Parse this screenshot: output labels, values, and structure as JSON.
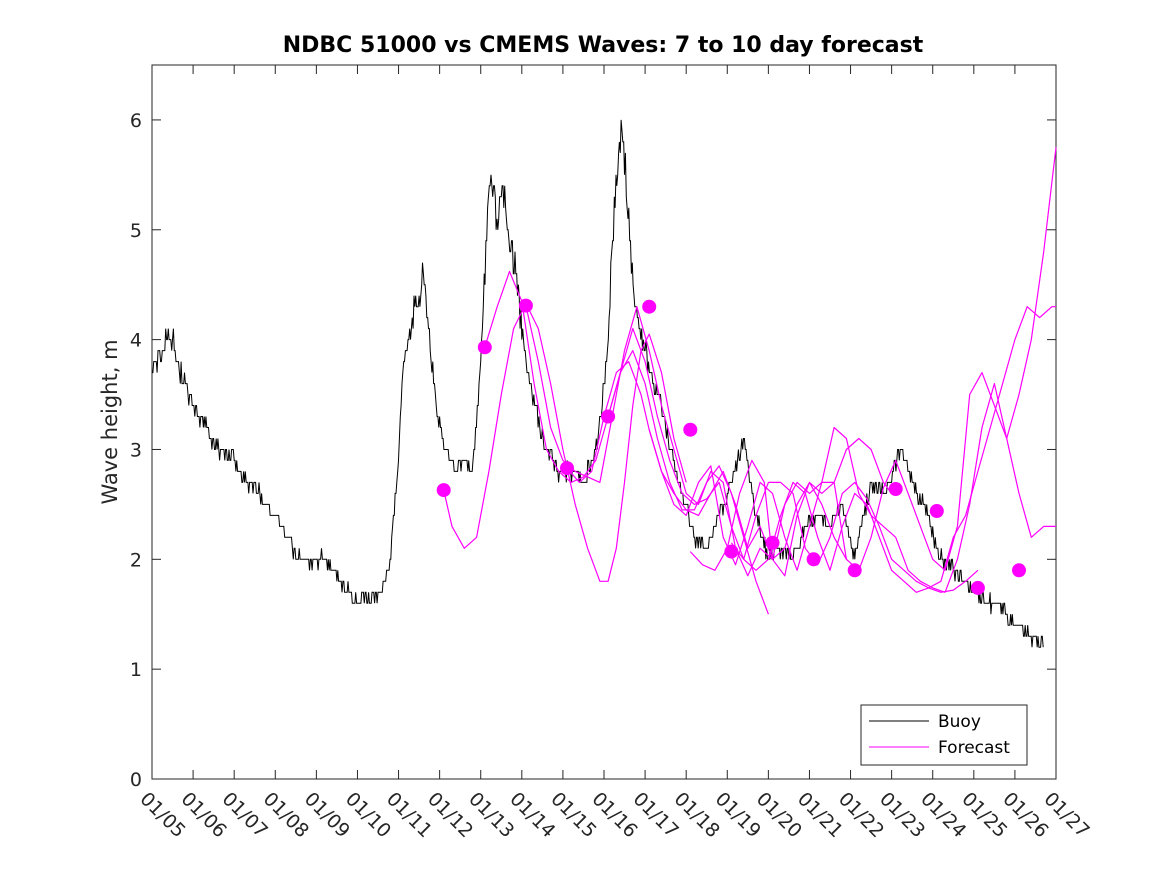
{
  "chart_data": {
    "type": "line",
    "title": "NDBC 51000 vs CMEMS Waves: 7 to 10 day forecast",
    "xlabel": "",
    "ylabel": "Wave height, m",
    "xlim": [
      0,
      22
    ],
    "ylim": [
      0,
      6.5
    ],
    "x_tick_labels": [
      "01/05",
      "01/06",
      "01/07",
      "01/08",
      "01/09",
      "01/10",
      "01/11",
      "01/12",
      "01/13",
      "01/14",
      "01/15",
      "01/16",
      "01/17",
      "01/18",
      "01/19",
      "01/20",
      "01/21",
      "01/22",
      "01/23",
      "01/24",
      "01/25",
      "01/26",
      "01/27"
    ],
    "y_ticks": [
      0,
      1,
      2,
      3,
      4,
      5,
      6
    ],
    "legend": {
      "position": "bottom-right",
      "entries": [
        "Buoy",
        "Forecast"
      ]
    },
    "colors": {
      "buoy": "#000000",
      "forecast": "#ff00ff"
    },
    "x_units": "days since 01/05",
    "buoy": {
      "name": "Buoy",
      "x": [
        0,
        0.25,
        0.4,
        0.5,
        0.7,
        1,
        1.3,
        1.6,
        2,
        2.3,
        2.6,
        3,
        3.3,
        3.6,
        4,
        4.3,
        4.6,
        4.8,
        5,
        5.3,
        5.6,
        5.8,
        6,
        6.1,
        6.25,
        6.4,
        6.5,
        6.6,
        6.75,
        6.9,
        7.1,
        7.4,
        7.6,
        7.8,
        8,
        8.1,
        8.2,
        8.3,
        8.4,
        8.55,
        8.7,
        8.85,
        9.05,
        9.3,
        9.6,
        9.9,
        10.1,
        10.35,
        10.5,
        10.7,
        10.9,
        11.1,
        11.25,
        11.4,
        11.5,
        11.65,
        11.8,
        12,
        12.15,
        12.25,
        12.4,
        12.5,
        12.7,
        12.9,
        13.2,
        13.5,
        13.8,
        14.1,
        14.4,
        14.7,
        15,
        15.3,
        15.6,
        15.9,
        16.2,
        16.5,
        16.8,
        17.1,
        17.5,
        17.8,
        18.05,
        18.2,
        18.4,
        18.6,
        18.8,
        19,
        19.2,
        19.5,
        19.8,
        20,
        20.3,
        20.6,
        20.8,
        21,
        21.3,
        21.5,
        21.7
      ],
      "y": [
        3.7,
        3.9,
        4.1,
        4.0,
        3.7,
        3.4,
        3.2,
        3.0,
        2.9,
        2.7,
        2.6,
        2.4,
        2.2,
        2.0,
        2.0,
        2.0,
        1.8,
        1.7,
        1.6,
        1.65,
        1.7,
        2.0,
        2.9,
        3.7,
        4.0,
        4.3,
        4.4,
        4.6,
        4.0,
        3.5,
        3.0,
        2.8,
        2.9,
        2.8,
        3.8,
        4.6,
        5.3,
        5.4,
        5.1,
        5.3,
        5.0,
        4.6,
        3.9,
        3.4,
        3.0,
        2.8,
        2.8,
        2.8,
        2.7,
        2.9,
        3.2,
        4.0,
        5.2,
        5.9,
        5.6,
        4.8,
        4.2,
        3.9,
        3.7,
        3.6,
        3.4,
        3.2,
        2.9,
        2.6,
        2.2,
        2.1,
        2.4,
        2.7,
        3.1,
        2.4,
        2.0,
        2.1,
        2.0,
        2.3,
        2.4,
        2.3,
        2.5,
        2.0,
        2.7,
        2.6,
        2.8,
        3.0,
        2.8,
        2.6,
        2.5,
        2.2,
        2.0,
        1.9,
        1.8,
        1.7,
        1.6,
        1.6,
        1.5,
        1.4,
        1.3,
        1.3,
        1.25
      ]
    },
    "forecast": {
      "name": "Forecast",
      "series": [
        {
          "x": [
            7.1,
            7.3,
            7.6,
            7.9,
            8.2,
            8.5,
            8.8,
            9.1,
            9.4,
            9.7,
            10.0,
            10.3,
            10.6,
            10.9,
            11.1,
            11.3,
            11.5,
            11.7,
            11.9,
            12.1,
            12.4,
            12.7,
            13.0
          ],
          "y": [
            2.63,
            2.3,
            2.1,
            2.2,
            2.8,
            3.5,
            4.1,
            4.33,
            4.1,
            3.6,
            3.0,
            2.5,
            2.1,
            1.8,
            1.8,
            2.1,
            2.7,
            3.4,
            3.9,
            4.05,
            3.7,
            3.1,
            2.7
          ]
        },
        {
          "x": [
            8.1,
            8.4,
            8.7,
            9.0,
            9.3,
            9.6,
            9.9,
            10.2,
            10.5,
            10.8,
            11.1,
            11.4,
            11.7,
            12.0,
            12.3,
            12.6,
            12.9,
            13.2,
            13.5,
            13.8,
            14.1,
            14.4,
            14.7,
            15.0
          ],
          "y": [
            3.93,
            4.3,
            4.62,
            4.35,
            3.6,
            3.0,
            2.8,
            2.7,
            2.75,
            2.9,
            3.3,
            3.7,
            3.9,
            3.6,
            3.1,
            2.7,
            2.45,
            2.45,
            2.7,
            2.85,
            2.6,
            2.2,
            1.8,
            1.5
          ]
        },
        {
          "x": [
            9.1,
            9.4,
            9.7,
            10.0,
            10.3,
            10.6,
            10.9,
            11.2,
            11.5,
            11.8,
            12.1,
            12.4,
            12.7,
            13.0,
            13.3,
            13.6,
            13.9,
            14.2,
            14.5,
            14.8,
            15.1,
            15.4,
            15.7,
            16.0,
            16.3,
            16.6,
            16.9
          ],
          "y": [
            4.31,
            3.8,
            3.2,
            2.9,
            2.8,
            2.75,
            2.7,
            3.3,
            3.9,
            4.3,
            3.9,
            3.4,
            3.0,
            2.6,
            2.5,
            2.8,
            2.7,
            2.1,
            1.85,
            2.1,
            2.0,
            2.5,
            2.7,
            2.6,
            2.7,
            2.7,
            2.0
          ]
        },
        {
          "x": [
            10.1,
            10.4,
            10.7,
            11.0,
            11.3,
            11.6,
            11.9,
            12.1,
            12.4,
            12.7,
            13.0,
            13.3,
            13.6,
            13.9,
            14.2,
            14.5,
            14.8,
            15.1,
            15.4,
            15.7,
            16.0,
            16.3,
            16.6,
            16.9,
            17.2,
            17.5,
            17.8,
            18.0
          ],
          "y": [
            2.83,
            2.7,
            2.8,
            3.3,
            3.7,
            3.8,
            3.5,
            3.18,
            2.8,
            2.6,
            2.45,
            2.4,
            2.6,
            2.8,
            2.5,
            2.1,
            2.3,
            2.0,
            2.1,
            2.5,
            2.7,
            2.6,
            2.7,
            3.0,
            3.1,
            3.0,
            2.7,
            2.6
          ]
        },
        {
          "x": [
            11.1,
            11.4,
            11.7,
            12.0,
            12.3,
            12.6,
            12.9,
            13.2,
            13.5,
            13.8,
            14.1,
            14.4,
            14.7,
            15.0,
            15.3,
            15.6,
            15.9,
            16.2,
            16.5,
            16.8,
            17.1,
            17.4,
            17.7,
            18.0,
            18.3,
            18.6,
            18.9,
            19.2,
            19.5,
            19.8,
            20.1
          ],
          "y": [
            3.3,
            3.7,
            4.1,
            3.8,
            3.3,
            2.9,
            2.6,
            2.5,
            2.55,
            2.7,
            2.3,
            2.0,
            2.4,
            2.7,
            2.7,
            2.6,
            2.1,
            1.95,
            2.2,
            2.6,
            2.7,
            2.55,
            2.3,
            2.0,
            1.9,
            1.8,
            1.74,
            1.7,
            1.72,
            1.8,
            1.9
          ]
        },
        {
          "x": [
            12.1,
            12.4,
            12.7,
            13.0,
            13.3,
            13.6,
            13.9,
            14.2,
            14.5,
            14.8,
            15.1,
            15.4,
            15.7,
            16.0,
            16.3,
            16.6,
            16.9,
            17.2,
            17.5,
            17.8,
            18.1,
            18.4,
            18.7,
            19.0,
            19.3,
            19.6,
            19.9,
            20.2,
            20.5,
            20.8,
            21.1,
            21.4,
            21.7,
            22.0
          ],
          "y": [
            3.18,
            2.8,
            2.5,
            2.4,
            2.7,
            2.85,
            2.2,
            1.95,
            2.3,
            2.7,
            2.6,
            2.2,
            1.9,
            2.3,
            2.7,
            3.2,
            3.1,
            2.6,
            2.4,
            2.3,
            2.2,
            1.9,
            1.8,
            1.74,
            1.7,
            2.0,
            2.5,
            3.2,
            3.6,
            3.1,
            2.6,
            2.2,
            2.3,
            2.3
          ]
        },
        {
          "x": [
            13.1,
            13.4,
            13.7,
            14.0,
            14.3,
            14.6,
            14.9,
            15.1,
            15.4,
            15.7,
            16.0,
            16.3,
            16.6,
            16.9,
            17.2,
            17.5,
            17.8,
            18.1,
            18.4,
            18.7,
            19.0,
            19.3,
            19.6,
            19.9,
            20.2,
            20.5,
            20.8,
            21.1,
            21.4,
            21.7,
            22.0
          ],
          "y": [
            2.07,
            1.95,
            1.9,
            2.1,
            2.6,
            2.9,
            2.7,
            2.0,
            1.85,
            2.4,
            2.7,
            2.5,
            2.2,
            2.0,
            1.9,
            2.2,
            2.65,
            2.9,
            2.6,
            2.3,
            2.0,
            1.9,
            2.3,
            3.5,
            3.7,
            3.4,
            3.1,
            3.5,
            4.0,
            4.8,
            5.75
          ]
        },
        {
          "x": [
            14.1,
            14.4,
            14.7,
            15.0,
            15.3,
            15.6,
            15.9,
            16.2,
            16.5,
            16.8,
            17.1,
            17.4,
            17.7,
            18.0,
            18.3,
            18.6,
            18.9,
            19.2,
            19.5,
            19.8,
            20.1,
            20.4,
            20.7,
            21.0,
            21.3,
            21.6,
            21.9,
            22.0
          ],
          "y": [
            2.15,
            2.0,
            1.9,
            2.0,
            2.4,
            2.7,
            2.6,
            2.2,
            1.9,
            2.3,
            2.6,
            2.5,
            2.2,
            1.9,
            1.8,
            1.7,
            1.74,
            1.8,
            2.2,
            2.4,
            2.8,
            3.2,
            3.6,
            4.0,
            4.3,
            4.2,
            4.3,
            4.3
          ]
        }
      ],
      "issue_markers": {
        "x": [
          7.1,
          8.1,
          9.1,
          10.1,
          11.1,
          12.1,
          13.1,
          14.1,
          15.1,
          16.1,
          17.1,
          18.1,
          19.1,
          20.1,
          21.1
        ],
        "y": [
          2.63,
          3.93,
          4.31,
          2.83,
          3.3,
          4.3,
          3.18,
          2.07,
          2.15,
          2.0,
          1.9,
          2.64,
          2.44,
          1.74,
          1.9
        ]
      }
    }
  }
}
